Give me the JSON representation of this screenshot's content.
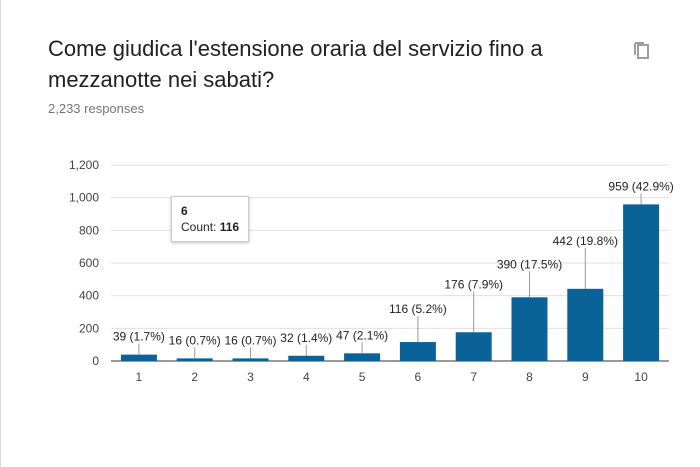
{
  "question": "Come giudica l'estensione oraria del servizio fino a mezzanotte nei sabati?",
  "responses": "2,233 responses",
  "copy_icon": "copy-icon",
  "tooltip": {
    "category": "6",
    "count_label": "Count:",
    "count_value": "116"
  },
  "chart_data": {
    "type": "bar",
    "categories": [
      "1",
      "2",
      "3",
      "4",
      "5",
      "6",
      "7",
      "8",
      "9",
      "10"
    ],
    "values": [
      39,
      16,
      16,
      32,
      47,
      116,
      176,
      390,
      442,
      959
    ],
    "data_labels": [
      "39 (1.7%)",
      "16 (0.7%)",
      "16 (0.7%)",
      "32 (1.4%)",
      "47 (2.1%)",
      "116 (5.2%)",
      "176 (7.9%)",
      "390 (17.5%)",
      "442 (19.8%)",
      "959 (42.9%)"
    ],
    "yticks": [
      "0",
      "200",
      "400",
      "600",
      "800",
      "1,000",
      "1,200"
    ],
    "ylim": [
      0,
      1200
    ],
    "bar_color": "#0b6299",
    "title": "",
    "xlabel": "",
    "ylabel": ""
  }
}
